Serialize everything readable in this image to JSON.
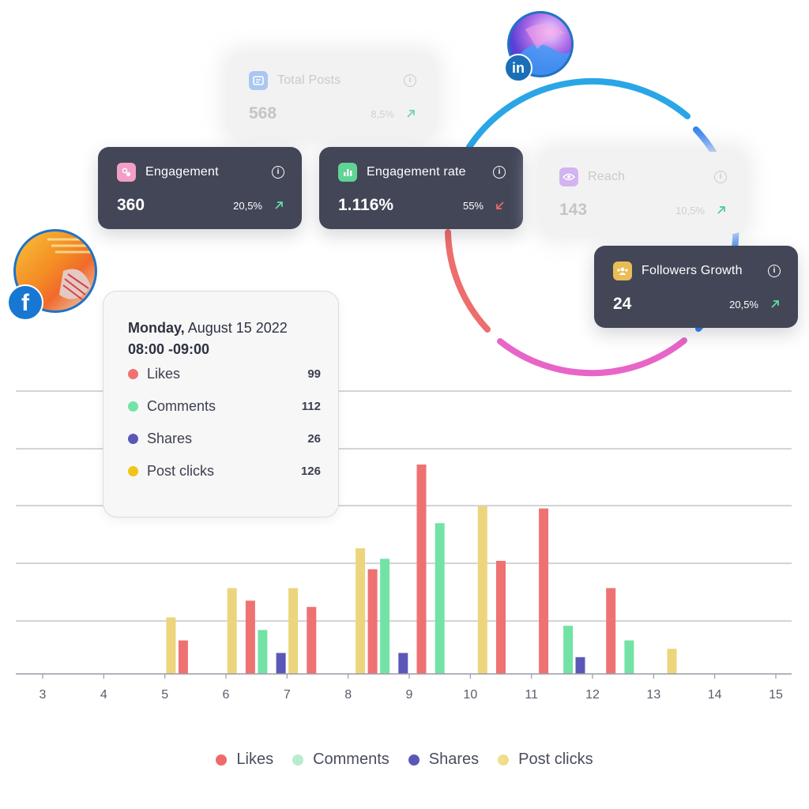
{
  "colors": {
    "likes": "#ee7272",
    "comments": "#72e3a5",
    "shares": "#5b57b8",
    "post_clicks": "#ecd57c",
    "card_bg": "#424657",
    "ring_blue": "#2f8ff0",
    "ring_red": "#ee6d6d",
    "ring_pink": "#e865c8"
  },
  "cards": {
    "total_posts": {
      "label": "Total Posts",
      "value": "568",
      "pct": "8,5%",
      "trend": "up",
      "icon": "posts-icon"
    },
    "engagement": {
      "label": "Engagement",
      "value": "360",
      "pct": "20,5%",
      "trend": "up",
      "icon": "engagement-icon"
    },
    "engagement_rate": {
      "label": "Engagement rate",
      "value": "1.116%",
      "pct": "55%",
      "trend": "down",
      "icon": "bar-chart-icon"
    },
    "reach": {
      "label": "Reach",
      "value": "143",
      "pct": "10,5%",
      "trend": "up",
      "icon": "eye-icon"
    },
    "followers_growth": {
      "label": "Followers Growth",
      "value": "24",
      "pct": "20,5%",
      "trend": "up",
      "icon": "followers-icon"
    }
  },
  "avatars": {
    "linkedin": {
      "badge": "in",
      "icon": "linkedin-icon"
    },
    "facebook": {
      "badge": "f",
      "icon": "facebook-icon"
    }
  },
  "tooltip": {
    "day": "Monday,",
    "date": "August 15  2022",
    "time": "08:00 -09:00",
    "rows": [
      {
        "name": "Likes",
        "value": "99"
      },
      {
        "name": "Comments",
        "value": "112"
      },
      {
        "name": "Shares",
        "value": "26"
      },
      {
        "name": "Post clicks",
        "value": "126"
      }
    ]
  },
  "chart_data": {
    "type": "bar",
    "title": "",
    "xlabel": "",
    "ylabel": "",
    "x_ticks": [
      "3",
      "4",
      "5",
      "6",
      "7",
      "8",
      "9",
      "10",
      "11",
      "12",
      "13",
      "14",
      "15"
    ],
    "xlim": [
      3,
      15
    ],
    "ylim": [
      0,
      100
    ],
    "grid": true,
    "legend": "bottom",
    "series": [
      {
        "name": "Likes",
        "color": "#ee7272",
        "points": [
          [
            5.3,
            16
          ],
          [
            6.4,
            35
          ],
          [
            7.4,
            32
          ],
          [
            8.4,
            50
          ],
          [
            9.2,
            100
          ],
          [
            10.5,
            54
          ],
          [
            11.2,
            79
          ],
          [
            12.3,
            41
          ]
        ]
      },
      {
        "name": "Comments",
        "color": "#72e3a5",
        "points": [
          [
            6.6,
            21
          ],
          [
            8.6,
            55
          ],
          [
            9.5,
            72
          ],
          [
            11.6,
            23
          ],
          [
            12.6,
            16
          ]
        ]
      },
      {
        "name": "Shares",
        "color": "#5b57b8",
        "points": [
          [
            6.9,
            10
          ],
          [
            8.9,
            10
          ],
          [
            11.8,
            8
          ]
        ]
      },
      {
        "name": "Post clicks",
        "color": "#ecd57c",
        "points": [
          [
            5.1,
            27
          ],
          [
            6.1,
            41
          ],
          [
            7.1,
            41
          ],
          [
            8.2,
            60
          ],
          [
            10.2,
            80
          ],
          [
            13.3,
            12
          ]
        ]
      }
    ]
  }
}
